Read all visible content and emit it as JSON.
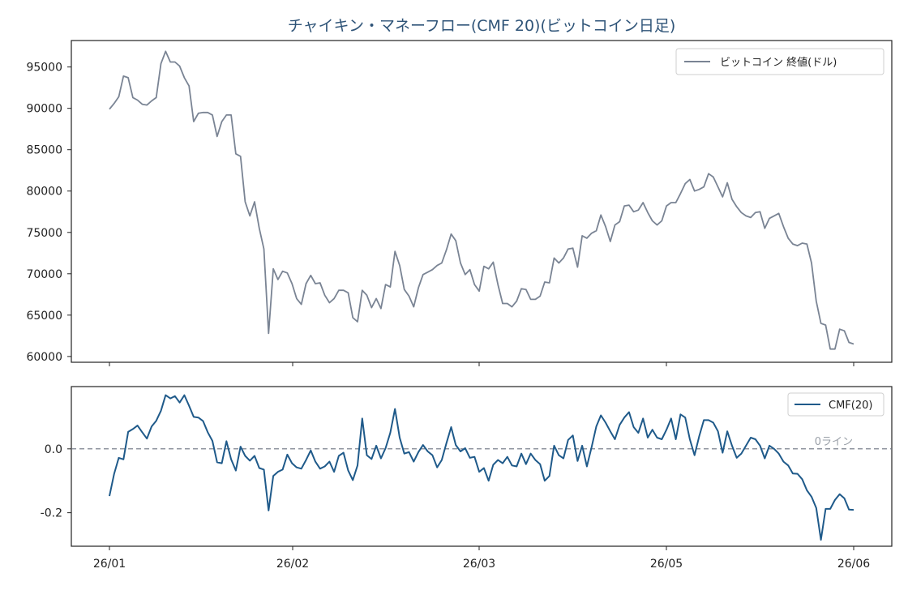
{
  "chart_data": [
    {
      "type": "line",
      "title": "チャイキン・マネーフロー(CMF 20)(ビットコイン日足)",
      "xlabel": "",
      "ylabel": "",
      "x_ticks": [
        "26/01",
        "26/02",
        "26/03",
        "26/05",
        "26/06"
      ],
      "y_ticks": [
        "60000",
        "65000",
        "70000",
        "75000",
        "80000",
        "85000",
        "90000",
        "95000"
      ],
      "ylim": [
        59300,
        98200
      ],
      "legend": "top-right",
      "grid": false,
      "colors": {
        "series": "#7a8494"
      },
      "series": [
        {
          "name": "ビットコイン 終値(ドル)",
          "values": [
            89900,
            90600,
            91400,
            93900,
            93700,
            91300,
            91000,
            90500,
            90400,
            90900,
            91300,
            95400,
            96900,
            95600,
            95600,
            95100,
            93700,
            92700,
            88400,
            89400,
            89500,
            89500,
            89200,
            86600,
            88400,
            89200,
            89200,
            84500,
            84200,
            78700,
            77000,
            78700,
            75500,
            73000,
            62800,
            70600,
            69300,
            70300,
            70100,
            68800,
            67000,
            66300,
            68800,
            69800,
            68800,
            68900,
            67400,
            66500,
            67000,
            68000,
            68000,
            67700,
            64700,
            64200,
            68000,
            67400,
            65900,
            67000,
            65800,
            68700,
            68400,
            72700,
            71000,
            68100,
            67300,
            66000,
            68300,
            69900,
            70200,
            70500,
            71000,
            71300,
            72900,
            74800,
            74000,
            71300,
            69900,
            70500,
            68700,
            67900,
            70900,
            70600,
            71400,
            68700,
            66400,
            66400,
            66000,
            66700,
            68200,
            68100,
            66900,
            66900,
            67300,
            69000,
            68900,
            71900,
            71300,
            71900,
            73000,
            73100,
            70800,
            74600,
            74300,
            74900,
            75200,
            77100,
            75700,
            73900,
            75900,
            76300,
            78200,
            78300,
            77500,
            77700,
            78600,
            77400,
            76400,
            75900,
            76400,
            78200,
            78600,
            78600,
            79700,
            80900,
            81400,
            80000,
            80200,
            80500,
            82100,
            81700,
            80500,
            79300,
            81000,
            79000,
            78100,
            77400,
            77000,
            76800,
            77400,
            77500,
            75500,
            76700,
            77000,
            77300,
            75700,
            74300,
            73600,
            73400,
            73700,
            73600,
            71300,
            66700,
            64000,
            63800,
            60900,
            60900,
            63300,
            63100,
            61700,
            61500
          ]
        }
      ]
    },
    {
      "type": "line",
      "title": "",
      "xlabel": "",
      "ylabel": "",
      "x_ticks": [
        "26/01",
        "26/02",
        "26/03",
        "26/05",
        "26/06"
      ],
      "y_ticks": [
        "0.0",
        "-0.2"
      ],
      "ylim": [
        -0.305,
        0.195
      ],
      "legend": "top-right",
      "grid": false,
      "reference_line": {
        "y": 0.0,
        "label": "0ライン"
      },
      "colors": {
        "series": "#1f5a8a",
        "reference": "#6c7480"
      },
      "series": [
        {
          "name": "CMF(20)",
          "values": [
            -0.148,
            -0.078,
            -0.028,
            -0.033,
            0.053,
            0.062,
            0.073,
            0.052,
            0.032,
            0.07,
            0.088,
            0.119,
            0.168,
            0.158,
            0.165,
            0.145,
            0.168,
            0.135,
            0.1,
            0.098,
            0.087,
            0.052,
            0.025,
            -0.042,
            -0.045,
            0.024,
            -0.033,
            -0.068,
            0.007,
            -0.022,
            -0.037,
            -0.022,
            -0.06,
            -0.065,
            -0.193,
            -0.085,
            -0.072,
            -0.065,
            -0.018,
            -0.045,
            -0.058,
            -0.062,
            -0.035,
            -0.005,
            -0.04,
            -0.062,
            -0.055,
            -0.04,
            -0.072,
            -0.022,
            -0.012,
            -0.068,
            -0.098,
            -0.052,
            0.095,
            -0.02,
            -0.032,
            0.01,
            -0.03,
            0.002,
            0.05,
            0.125,
            0.035,
            -0.015,
            -0.01,
            -0.04,
            -0.01,
            0.012,
            -0.008,
            -0.02,
            -0.058,
            -0.035,
            0.018,
            0.068,
            0.012,
            -0.008,
            0.002,
            -0.028,
            -0.025,
            -0.072,
            -0.06,
            -0.1,
            -0.05,
            -0.035,
            -0.045,
            -0.025,
            -0.052,
            -0.055,
            -0.015,
            -0.048,
            -0.015,
            -0.035,
            -0.048,
            -0.1,
            -0.085,
            0.01,
            -0.02,
            -0.03,
            0.028,
            0.042,
            -0.038,
            0.01,
            -0.055,
            0.005,
            0.07,
            0.105,
            0.082,
            0.055,
            0.03,
            0.075,
            0.098,
            0.115,
            0.068,
            0.05,
            0.095,
            0.035,
            0.06,
            0.035,
            0.03,
            0.06,
            0.095,
            0.03,
            0.108,
            0.098,
            0.03,
            -0.02,
            0.04,
            0.09,
            0.09,
            0.082,
            0.055,
            -0.012,
            0.055,
            0.01,
            -0.028,
            -0.015,
            0.01,
            0.035,
            0.03,
            0.01,
            -0.03,
            0.01,
            0.0,
            -0.015,
            -0.04,
            -0.052,
            -0.077,
            -0.078,
            -0.095,
            -0.13,
            -0.15,
            -0.185,
            -0.285,
            -0.188,
            -0.188,
            -0.16,
            -0.142,
            -0.155,
            -0.19,
            -0.191
          ]
        }
      ]
    }
  ]
}
